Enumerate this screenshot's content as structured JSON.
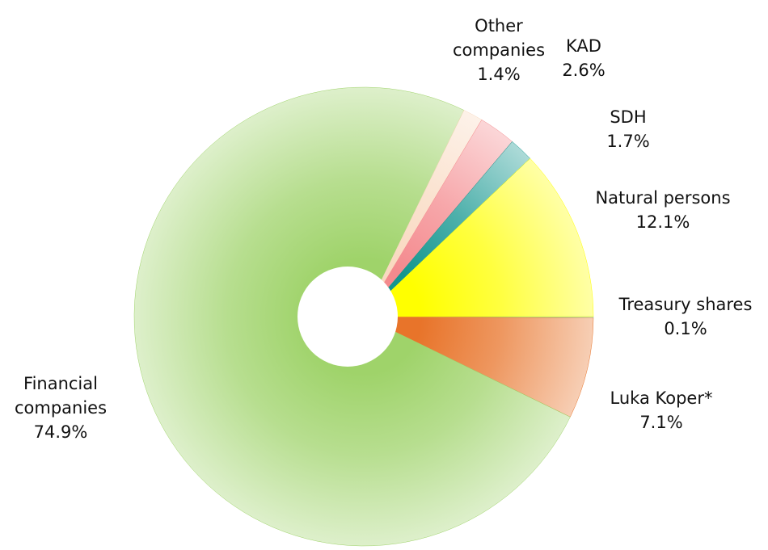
{
  "chart_data": {
    "type": "pie",
    "categories": [
      "Treasury shares",
      "Luka Koper*",
      "Financial companies",
      "Other companies",
      "KAD",
      "SDH",
      "Natural persons"
    ],
    "values": [
      0.1,
      7.1,
      74.9,
      1.4,
      2.6,
      1.7,
      12.1
    ],
    "value_labels": [
      "0.1%",
      "7.1%",
      "74.9%",
      "1.4%",
      "2.6%",
      "1.7%",
      "12.1%"
    ],
    "colors": [
      "#7cc8a8",
      "#e8742a",
      "#9fd36a",
      "#f9d9c0",
      "#f48a8e",
      "#13968f",
      "#ffff00"
    ]
  }
}
